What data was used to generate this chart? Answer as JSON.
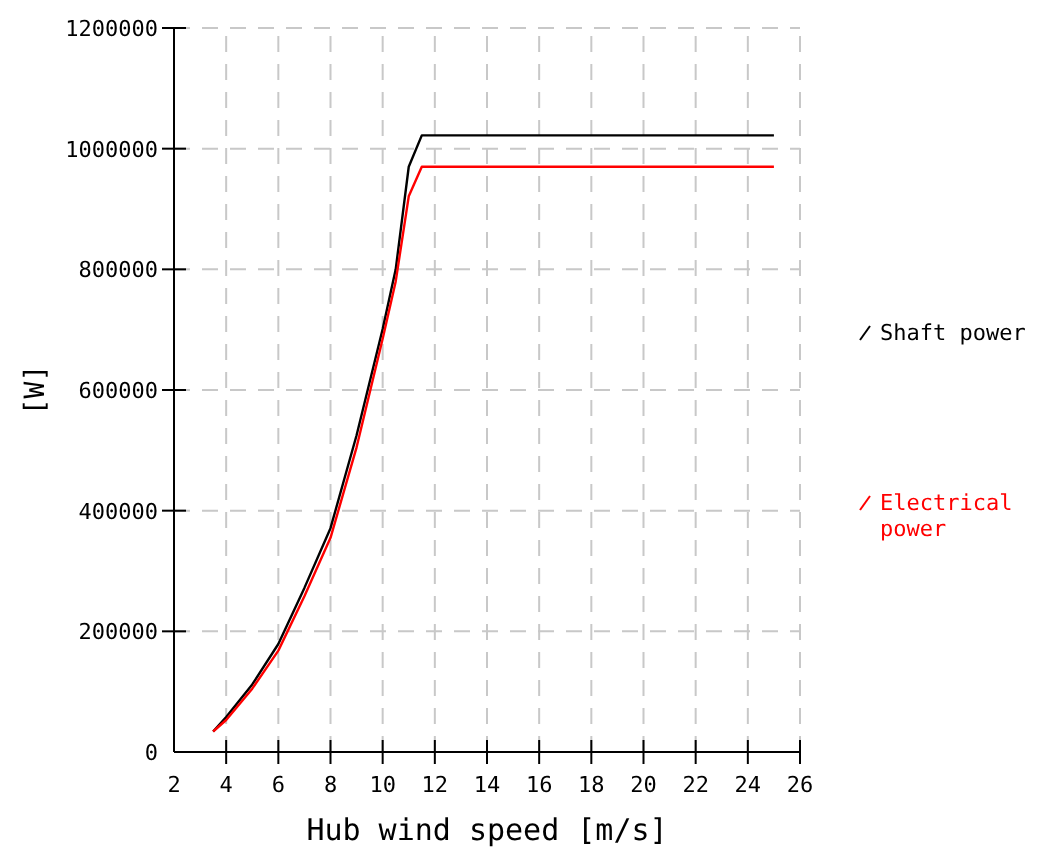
{
  "chart_data": {
    "type": "line",
    "xlabel": "Hub wind speed [m/s]",
    "ylabel": "[W]",
    "xlim": [
      2,
      26
    ],
    "xticks": [
      2,
      4,
      6,
      8,
      10,
      12,
      14,
      16,
      18,
      20,
      22,
      24,
      26
    ],
    "ylim": [
      0,
      1200000
    ],
    "yticks": [
      0,
      200000,
      400000,
      600000,
      800000,
      1000000,
      1200000
    ],
    "grid": true,
    "legend": "right",
    "x": [
      3.5,
      4,
      5,
      6,
      7,
      8,
      9,
      10,
      10.5,
      11,
      11.5,
      25
    ],
    "series": [
      {
        "name": "Shaft power",
        "color": "#000000",
        "values": [
          34000,
          58000,
          112000,
          179000,
          272000,
          371000,
          525000,
          701000,
          800000,
          970000,
          1022000,
          1022000
        ]
      },
      {
        "name": "Electrical power",
        "color": "#ff0000",
        "values": [
          34000,
          53000,
          105000,
          168000,
          258000,
          355000,
          505000,
          685000,
          780000,
          921000,
          970000,
          970000
        ]
      }
    ]
  }
}
